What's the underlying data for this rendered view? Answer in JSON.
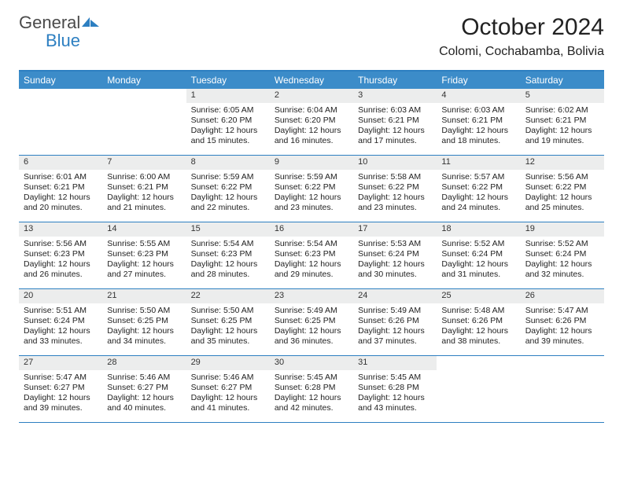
{
  "logo": {
    "textGray": "General",
    "textBlue": "Blue"
  },
  "title": "October 2024",
  "location": "Colomi, Cochabamba, Bolivia",
  "colors": {
    "headerBlue": "#3c8cc9",
    "ruleBlue": "#2d7fc1",
    "dayBar": "#eceded",
    "text": "#222222",
    "white": "#ffffff"
  },
  "daysOfWeek": [
    "Sunday",
    "Monday",
    "Tuesday",
    "Wednesday",
    "Thursday",
    "Friday",
    "Saturday"
  ],
  "weeks": [
    [
      {
        "blank": true
      },
      {
        "blank": true
      },
      {
        "n": "1",
        "sunrise": "Sunrise: 6:05 AM",
        "sunset": "Sunset: 6:20 PM",
        "daylight": "Daylight: 12 hours and 15 minutes."
      },
      {
        "n": "2",
        "sunrise": "Sunrise: 6:04 AM",
        "sunset": "Sunset: 6:20 PM",
        "daylight": "Daylight: 12 hours and 16 minutes."
      },
      {
        "n": "3",
        "sunrise": "Sunrise: 6:03 AM",
        "sunset": "Sunset: 6:21 PM",
        "daylight": "Daylight: 12 hours and 17 minutes."
      },
      {
        "n": "4",
        "sunrise": "Sunrise: 6:03 AM",
        "sunset": "Sunset: 6:21 PM",
        "daylight": "Daylight: 12 hours and 18 minutes."
      },
      {
        "n": "5",
        "sunrise": "Sunrise: 6:02 AM",
        "sunset": "Sunset: 6:21 PM",
        "daylight": "Daylight: 12 hours and 19 minutes."
      }
    ],
    [
      {
        "n": "6",
        "sunrise": "Sunrise: 6:01 AM",
        "sunset": "Sunset: 6:21 PM",
        "daylight": "Daylight: 12 hours and 20 minutes."
      },
      {
        "n": "7",
        "sunrise": "Sunrise: 6:00 AM",
        "sunset": "Sunset: 6:21 PM",
        "daylight": "Daylight: 12 hours and 21 minutes."
      },
      {
        "n": "8",
        "sunrise": "Sunrise: 5:59 AM",
        "sunset": "Sunset: 6:22 PM",
        "daylight": "Daylight: 12 hours and 22 minutes."
      },
      {
        "n": "9",
        "sunrise": "Sunrise: 5:59 AM",
        "sunset": "Sunset: 6:22 PM",
        "daylight": "Daylight: 12 hours and 23 minutes."
      },
      {
        "n": "10",
        "sunrise": "Sunrise: 5:58 AM",
        "sunset": "Sunset: 6:22 PM",
        "daylight": "Daylight: 12 hours and 23 minutes."
      },
      {
        "n": "11",
        "sunrise": "Sunrise: 5:57 AM",
        "sunset": "Sunset: 6:22 PM",
        "daylight": "Daylight: 12 hours and 24 minutes."
      },
      {
        "n": "12",
        "sunrise": "Sunrise: 5:56 AM",
        "sunset": "Sunset: 6:22 PM",
        "daylight": "Daylight: 12 hours and 25 minutes."
      }
    ],
    [
      {
        "n": "13",
        "sunrise": "Sunrise: 5:56 AM",
        "sunset": "Sunset: 6:23 PM",
        "daylight": "Daylight: 12 hours and 26 minutes."
      },
      {
        "n": "14",
        "sunrise": "Sunrise: 5:55 AM",
        "sunset": "Sunset: 6:23 PM",
        "daylight": "Daylight: 12 hours and 27 minutes."
      },
      {
        "n": "15",
        "sunrise": "Sunrise: 5:54 AM",
        "sunset": "Sunset: 6:23 PM",
        "daylight": "Daylight: 12 hours and 28 minutes."
      },
      {
        "n": "16",
        "sunrise": "Sunrise: 5:54 AM",
        "sunset": "Sunset: 6:23 PM",
        "daylight": "Daylight: 12 hours and 29 minutes."
      },
      {
        "n": "17",
        "sunrise": "Sunrise: 5:53 AM",
        "sunset": "Sunset: 6:24 PM",
        "daylight": "Daylight: 12 hours and 30 minutes."
      },
      {
        "n": "18",
        "sunrise": "Sunrise: 5:52 AM",
        "sunset": "Sunset: 6:24 PM",
        "daylight": "Daylight: 12 hours and 31 minutes."
      },
      {
        "n": "19",
        "sunrise": "Sunrise: 5:52 AM",
        "sunset": "Sunset: 6:24 PM",
        "daylight": "Daylight: 12 hours and 32 minutes."
      }
    ],
    [
      {
        "n": "20",
        "sunrise": "Sunrise: 5:51 AM",
        "sunset": "Sunset: 6:24 PM",
        "daylight": "Daylight: 12 hours and 33 minutes."
      },
      {
        "n": "21",
        "sunrise": "Sunrise: 5:50 AM",
        "sunset": "Sunset: 6:25 PM",
        "daylight": "Daylight: 12 hours and 34 minutes."
      },
      {
        "n": "22",
        "sunrise": "Sunrise: 5:50 AM",
        "sunset": "Sunset: 6:25 PM",
        "daylight": "Daylight: 12 hours and 35 minutes."
      },
      {
        "n": "23",
        "sunrise": "Sunrise: 5:49 AM",
        "sunset": "Sunset: 6:25 PM",
        "daylight": "Daylight: 12 hours and 36 minutes."
      },
      {
        "n": "24",
        "sunrise": "Sunrise: 5:49 AM",
        "sunset": "Sunset: 6:26 PM",
        "daylight": "Daylight: 12 hours and 37 minutes."
      },
      {
        "n": "25",
        "sunrise": "Sunrise: 5:48 AM",
        "sunset": "Sunset: 6:26 PM",
        "daylight": "Daylight: 12 hours and 38 minutes."
      },
      {
        "n": "26",
        "sunrise": "Sunrise: 5:47 AM",
        "sunset": "Sunset: 6:26 PM",
        "daylight": "Daylight: 12 hours and 39 minutes."
      }
    ],
    [
      {
        "n": "27",
        "sunrise": "Sunrise: 5:47 AM",
        "sunset": "Sunset: 6:27 PM",
        "daylight": "Daylight: 12 hours and 39 minutes."
      },
      {
        "n": "28",
        "sunrise": "Sunrise: 5:46 AM",
        "sunset": "Sunset: 6:27 PM",
        "daylight": "Daylight: 12 hours and 40 minutes."
      },
      {
        "n": "29",
        "sunrise": "Sunrise: 5:46 AM",
        "sunset": "Sunset: 6:27 PM",
        "daylight": "Daylight: 12 hours and 41 minutes."
      },
      {
        "n": "30",
        "sunrise": "Sunrise: 5:45 AM",
        "sunset": "Sunset: 6:28 PM",
        "daylight": "Daylight: 12 hours and 42 minutes."
      },
      {
        "n": "31",
        "sunrise": "Sunrise: 5:45 AM",
        "sunset": "Sunset: 6:28 PM",
        "daylight": "Daylight: 12 hours and 43 minutes."
      },
      {
        "blank": true
      },
      {
        "blank": true
      }
    ]
  ]
}
